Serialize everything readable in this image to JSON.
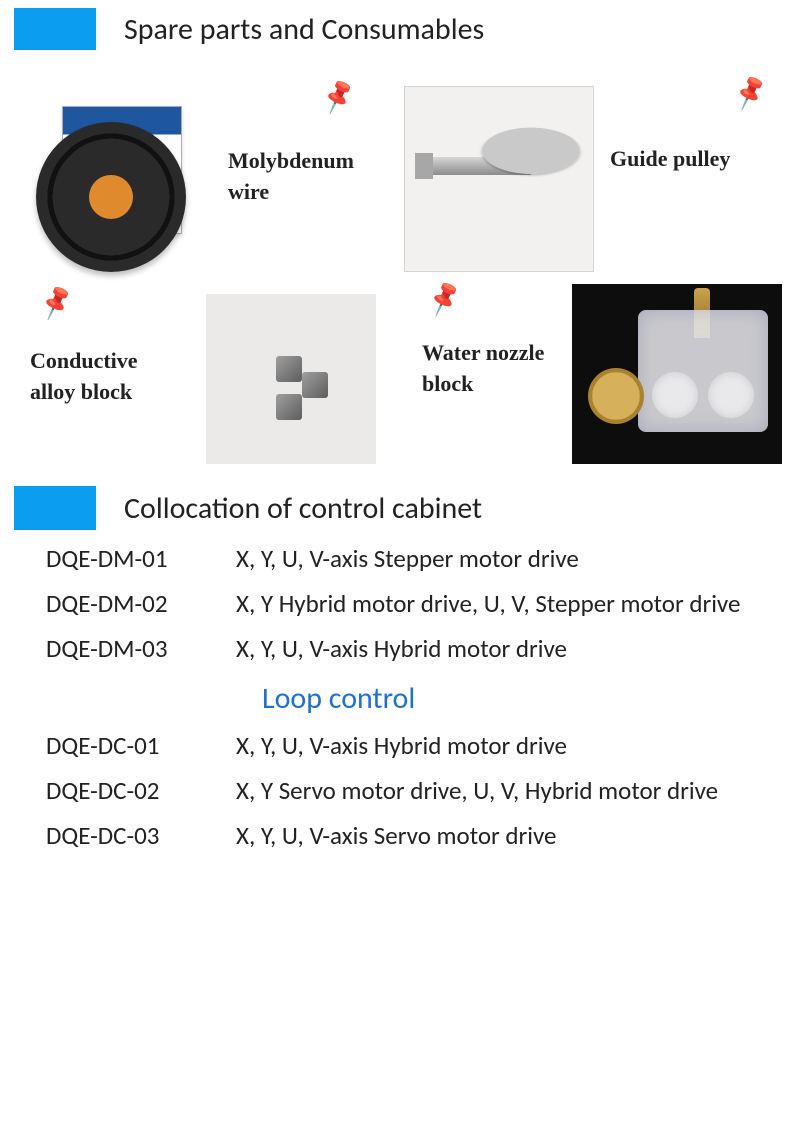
{
  "accent_color": "#0a9df0",
  "pin_color": "#1433b5",
  "loop_title_color": "#1e6fd6",
  "sections": {
    "spare_parts_title": "Spare parts and Consumables",
    "collocation_title": "Collocation of control cabinet",
    "loop_title": "Loop control"
  },
  "parts": {
    "molybdenum": {
      "label_l1": "Molybdenum",
      "label_l2": "wire"
    },
    "guide_pulley": {
      "label": "Guide  pulley"
    },
    "conductive": {
      "label_l1": "Conductive",
      "label_l2": "alloy  block"
    },
    "water_nozzle": {
      "label_l1": "Water  nozzle",
      "label_l2": "block"
    }
  },
  "specs_top": [
    {
      "code": "DQE-DM-01",
      "desc": "X, Y, U, V-axis Stepper motor drive"
    },
    {
      "code": "DQE-DM-02",
      "desc": "X, Y Hybrid motor drive,  U, V, Stepper motor drive"
    },
    {
      "code": "DQE-DM-03",
      "desc": "X, Y, U, V-axis Hybrid motor drive"
    }
  ],
  "specs_bottom": [
    {
      "code": "DQE-DC-01",
      "desc": "X, Y, U, V-axis Hybrid motor drive"
    },
    {
      "code": "DQE-DC-02",
      "desc": "X, Y Servo motor drive,     U, V, Hybrid motor drive"
    },
    {
      "code": "DQE-DC-03",
      "desc": "X, Y, U, V-axis Servo motor drive"
    }
  ]
}
